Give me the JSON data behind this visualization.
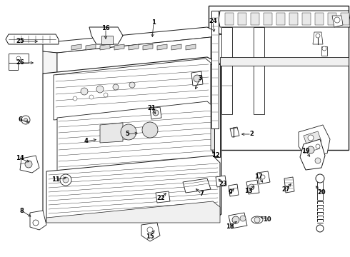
{
  "bg_color": "#ffffff",
  "lc": "#1a1a1a",
  "fig_width": 4.9,
  "fig_height": 3.6,
  "dpi": 100,
  "labels": {
    "1": [
      215,
      32,
      213,
      55
    ],
    "2": [
      352,
      188,
      335,
      188
    ],
    "3": [
      280,
      110,
      272,
      128
    ],
    "4": [
      120,
      198,
      138,
      195
    ],
    "5": [
      178,
      188,
      196,
      186
    ],
    "6": [
      28,
      168,
      44,
      172
    ],
    "7": [
      282,
      272,
      272,
      262
    ],
    "8": [
      30,
      295,
      46,
      305
    ],
    "9": [
      322,
      270,
      330,
      262
    ],
    "10": [
      374,
      308,
      362,
      302
    ],
    "11": [
      78,
      252,
      96,
      248
    ],
    "12": [
      302,
      218,
      295,
      208
    ],
    "13": [
      348,
      268,
      358,
      258
    ],
    "14": [
      28,
      222,
      44,
      228
    ],
    "15": [
      210,
      332,
      218,
      320
    ],
    "16": [
      148,
      40,
      148,
      58
    ],
    "17": [
      362,
      248,
      370,
      258
    ],
    "18": [
      322,
      318,
      334,
      308
    ],
    "19": [
      428,
      212,
      436,
      222
    ],
    "20": [
      450,
      270,
      440,
      258
    ],
    "21": [
      212,
      152,
      220,
      162
    ],
    "22": [
      225,
      278,
      235,
      268
    ],
    "23": [
      312,
      258,
      304,
      248
    ],
    "24": [
      298,
      30,
      300,
      48
    ],
    "25": [
      28,
      58,
      56,
      58
    ],
    "26": [
      28,
      88,
      50,
      88
    ],
    "27": [
      400,
      265,
      410,
      255
    ]
  }
}
